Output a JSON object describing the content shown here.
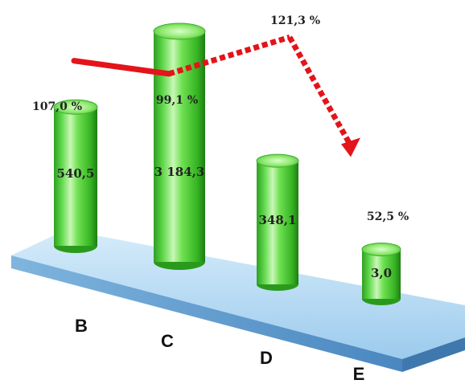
{
  "chart_data": {
    "type": "bar",
    "categories": [
      "B",
      "C",
      "D",
      "E"
    ],
    "series": [
      {
        "values": [
          540.5,
          3184.3,
          348.1,
          3.0
        ],
        "labels": [
          "540,5",
          "3 184,3",
          "348,1",
          "3,0"
        ],
        "color": "#4ccf3a"
      }
    ],
    "percentage_line": {
      "values": [
        107.0,
        99.1,
        121.3,
        52.5
      ],
      "labels": [
        "107,0 %",
        "99,1 %",
        "121,3 %",
        "52,5 %"
      ],
      "color": "#e3141a"
    },
    "title": "",
    "xlabel": "",
    "ylabel": ""
  }
}
